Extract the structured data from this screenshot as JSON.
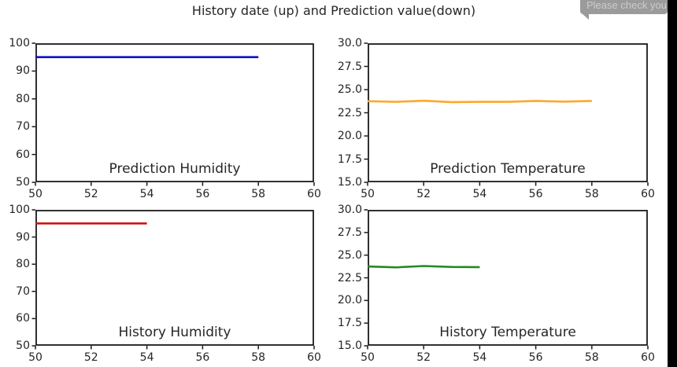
{
  "page": {
    "title": "History date (up) and Prediction value(down)",
    "background": "#ffffff",
    "right_strip_color": "#000000"
  },
  "notification": {
    "text": "Please check you",
    "bg": "#9b9b9b",
    "text_color": "#cccccc"
  },
  "chart_data": [
    {
      "type": "line",
      "title": "Prediction Humidity",
      "x": [
        50,
        51,
        52,
        53,
        54,
        55,
        56,
        57,
        58
      ],
      "y": [
        95,
        95,
        95,
        95,
        95,
        95,
        95,
        95,
        95
      ],
      "xlim": [
        50,
        60
      ],
      "ylim": [
        50,
        100
      ],
      "xtick_values": [
        50,
        52,
        54,
        56,
        58,
        60
      ],
      "xtick_labels": [
        "50",
        "52",
        "54",
        "56",
        "58",
        "60"
      ],
      "ytick_values": [
        100,
        90,
        80,
        70,
        60,
        50
      ],
      "ytick_labels": [
        "100",
        "90",
        "80",
        "70",
        "60",
        "50"
      ],
      "line_color": "#0f0fd0",
      "grid": false,
      "legend": "none"
    },
    {
      "type": "line",
      "title": "Prediction Temperature",
      "x": [
        50,
        51,
        52,
        53,
        54,
        55,
        56,
        57,
        58
      ],
      "y": [
        23.75,
        23.68,
        23.8,
        23.65,
        23.68,
        23.68,
        23.78,
        23.7,
        23.78
      ],
      "xlim": [
        50,
        60
      ],
      "ylim": [
        15,
        30
      ],
      "xtick_values": [
        50,
        52,
        54,
        56,
        58,
        60
      ],
      "xtick_labels": [
        "50",
        "52",
        "54",
        "56",
        "58",
        "60"
      ],
      "ytick_values": [
        30.0,
        27.5,
        25.0,
        22.5,
        20.0,
        17.5,
        15.0
      ],
      "ytick_labels": [
        "30.0",
        "27.5",
        "25.0",
        "22.5",
        "20.0",
        "17.5",
        "15.0"
      ],
      "line_color": "#ffa827",
      "grid": false,
      "legend": "none"
    },
    {
      "type": "line",
      "title": "History Humidity",
      "x": [
        50,
        51,
        52,
        53,
        54
      ],
      "y": [
        95,
        95,
        95,
        95,
        95
      ],
      "xlim": [
        50,
        60
      ],
      "ylim": [
        50,
        100
      ],
      "xtick_values": [
        50,
        52,
        54,
        56,
        58,
        60
      ],
      "xtick_labels": [
        "50",
        "52",
        "54",
        "56",
        "58",
        "60"
      ],
      "ytick_values": [
        100,
        90,
        80,
        70,
        60,
        50
      ],
      "ytick_labels": [
        "100",
        "90",
        "80",
        "70",
        "60",
        "50"
      ],
      "line_color": "#cf1414",
      "grid": false,
      "legend": "none"
    },
    {
      "type": "line",
      "title": "History Temperature",
      "x": [
        50,
        51,
        52,
        53,
        54
      ],
      "y": [
        23.75,
        23.65,
        23.8,
        23.7,
        23.68
      ],
      "xlim": [
        50,
        60
      ],
      "ylim": [
        15,
        30
      ],
      "xtick_values": [
        50,
        52,
        54,
        56,
        58,
        60
      ],
      "xtick_labels": [
        "50",
        "52",
        "54",
        "56",
        "58",
        "60"
      ],
      "ytick_values": [
        30.0,
        27.5,
        25.0,
        22.5,
        20.0,
        17.5,
        15.0
      ],
      "ytick_labels": [
        "30.0",
        "27.5",
        "25.0",
        "22.5",
        "20.0",
        "17.5",
        "15.0"
      ],
      "line_color": "#228b22",
      "grid": false,
      "legend": "none"
    }
  ]
}
